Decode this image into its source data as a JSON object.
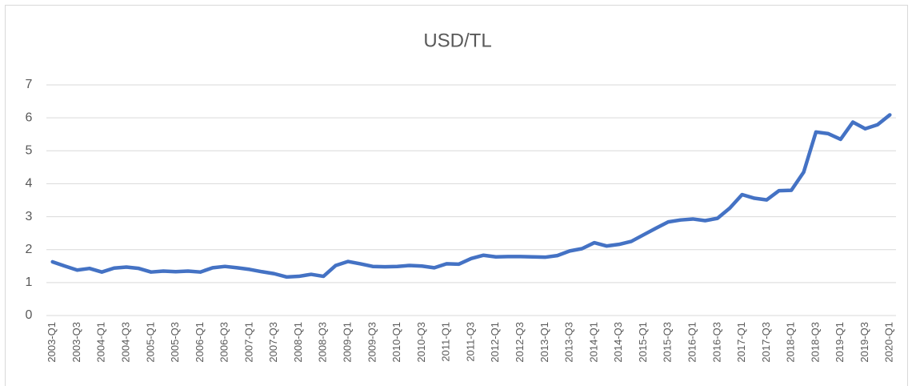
{
  "chart_data": {
    "type": "line",
    "title": "USD/TL",
    "categories": [
      "2003-Q1",
      null,
      "2003-Q3",
      null,
      "2004-Q1",
      null,
      "2004-Q3",
      null,
      "2005-Q1",
      null,
      "2005-Q3",
      null,
      "2006-Q1",
      null,
      "2006-Q3",
      null,
      "2007-Q1",
      null,
      "2007-Q3",
      null,
      "2008-Q1",
      null,
      "2008-Q3",
      null,
      "2009-Q1",
      null,
      "2009-Q3",
      null,
      "2010-Q1",
      null,
      "2010-Q3",
      null,
      "2011-Q1",
      null,
      "2011-Q3",
      null,
      "2012-Q1",
      null,
      "2012-Q3",
      null,
      "2013-Q1",
      null,
      "2013-Q3",
      null,
      "2014-Q1",
      null,
      "2014-Q3",
      null,
      "2015-Q1",
      null,
      "2015-Q3",
      null,
      "2016-Q1",
      null,
      "2016-Q3",
      null,
      "2017-Q1",
      null,
      "2017-Q3",
      null,
      "2018-Q1",
      null,
      "2018-Q3",
      null,
      "2019-Q1",
      null,
      "2019-Q3",
      null,
      "2020-Q1"
    ],
    "values": [
      1.63,
      1.5,
      1.38,
      1.43,
      1.32,
      1.44,
      1.47,
      1.43,
      1.32,
      1.35,
      1.33,
      1.35,
      1.32,
      1.45,
      1.49,
      1.45,
      1.4,
      1.33,
      1.27,
      1.17,
      1.19,
      1.25,
      1.19,
      1.52,
      1.64,
      1.57,
      1.49,
      1.48,
      1.49,
      1.52,
      1.5,
      1.45,
      1.57,
      1.56,
      1.73,
      1.83,
      1.78,
      1.79,
      1.79,
      1.78,
      1.77,
      1.82,
      1.96,
      2.03,
      2.21,
      2.11,
      2.16,
      2.25,
      2.45,
      2.65,
      2.84,
      2.9,
      2.93,
      2.88,
      2.95,
      3.26,
      3.67,
      3.56,
      3.51,
      3.79,
      3.8,
      4.35,
      5.57,
      5.52,
      5.35,
      5.87,
      5.67,
      5.79,
      6.09
    ],
    "color": "#4472c4",
    "ylim": [
      0,
      7
    ],
    "yticks": [
      0,
      1,
      2,
      3,
      4,
      5,
      6,
      7
    ],
    "grid": true
  }
}
